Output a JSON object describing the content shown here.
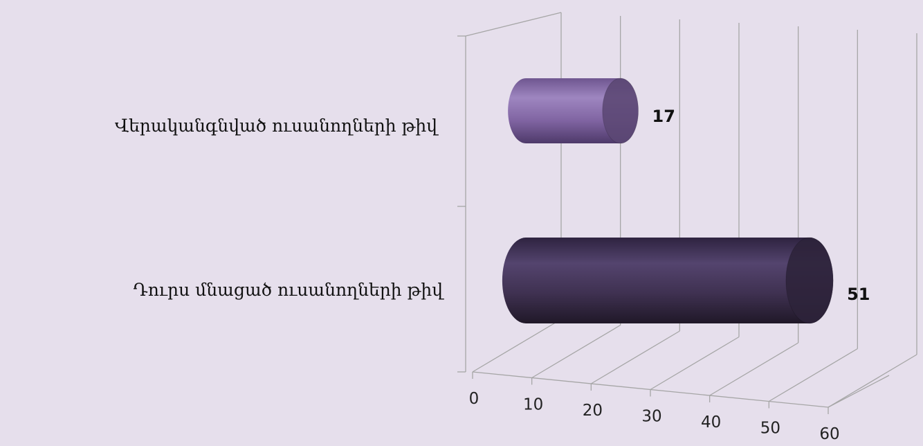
{
  "chart_data": {
    "type": "bar",
    "orientation": "horizontal",
    "style": "3d-cylinder",
    "categories": [
      "Վերականգնված ուսանողների թիվ",
      "Դուրս մնացած ուսանողների թիվ"
    ],
    "values": [
      17,
      51
    ],
    "data_labels": [
      "17",
      "51"
    ],
    "x_ticks": [
      "0",
      "10",
      "20",
      "30",
      "40",
      "50",
      "60"
    ],
    "xlim": [
      0,
      60
    ],
    "grid": true,
    "legend": "none",
    "colors": {
      "background": "#E6DFEC",
      "gridline": "#A6A6A6",
      "bar_1": "#8064A2",
      "bar_2": "#3F3151"
    }
  }
}
